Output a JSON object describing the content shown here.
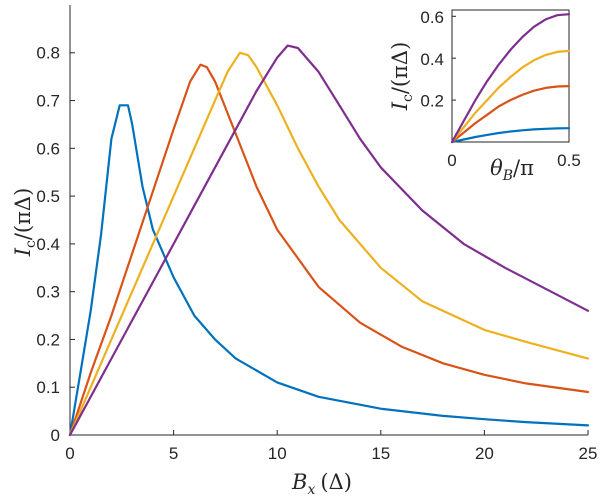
{
  "chart_data": [
    {
      "type": "line",
      "title": "",
      "xlabel": "B_x (Δ)",
      "ylabel": "I_c/(πΔ)",
      "xlim": [
        0,
        25
      ],
      "ylim": [
        0,
        0.9
      ],
      "xticks": [
        "0",
        "5",
        "10",
        "15",
        "20",
        "25"
      ],
      "yticks": [
        "0",
        "0.1",
        "0.2",
        "0.3",
        "0.4",
        "0.5",
        "0.6",
        "0.7",
        "0.8"
      ],
      "grid": false,
      "series": [
        {
          "color": "#0072BD",
          "x": [
            0,
            0.5,
            1,
            1.5,
            2,
            2.4,
            2.8,
            3.0,
            3.5,
            4,
            5,
            6,
            7,
            8,
            10,
            12,
            15,
            18,
            20,
            22,
            25
          ],
          "y": [
            0,
            0.13,
            0.26,
            0.42,
            0.62,
            0.69,
            0.69,
            0.65,
            0.52,
            0.43,
            0.33,
            0.25,
            0.2,
            0.16,
            0.11,
            0.08,
            0.055,
            0.04,
            0.033,
            0.027,
            0.02
          ]
        },
        {
          "color": "#D95319",
          "x": [
            0,
            1,
            2,
            3,
            4,
            5,
            5.8,
            6.3,
            6.6,
            7,
            8,
            9,
            10,
            12,
            14,
            16,
            18,
            20,
            22,
            25
          ],
          "y": [
            0,
            0.13,
            0.25,
            0.38,
            0.51,
            0.64,
            0.74,
            0.775,
            0.77,
            0.74,
            0.63,
            0.52,
            0.43,
            0.31,
            0.235,
            0.185,
            0.15,
            0.126,
            0.108,
            0.09
          ]
        },
        {
          "color": "#EDB120",
          "x": [
            0,
            2,
            4,
            6,
            7,
            7.6,
            8.2,
            8.6,
            9,
            10,
            11,
            12,
            13,
            15,
            17,
            20,
            22,
            25
          ],
          "y": [
            0,
            0.2,
            0.4,
            0.6,
            0.7,
            0.76,
            0.8,
            0.795,
            0.77,
            0.69,
            0.6,
            0.52,
            0.45,
            0.35,
            0.28,
            0.22,
            0.195,
            0.16
          ]
        },
        {
          "color": "#7E2F8E",
          "x": [
            0,
            2,
            4,
            6,
            8,
            9,
            10,
            10.5,
            11,
            12,
            13,
            14,
            15,
            17,
            19,
            21,
            23,
            25
          ],
          "y": [
            0,
            0.16,
            0.32,
            0.48,
            0.64,
            0.72,
            0.79,
            0.815,
            0.81,
            0.76,
            0.69,
            0.62,
            0.56,
            0.47,
            0.4,
            0.35,
            0.305,
            0.26
          ]
        }
      ]
    },
    {
      "type": "line",
      "title": "",
      "xlabel": "θ_B/π",
      "ylabel": "I_c/(πΔ)",
      "xlim": [
        0,
        0.5
      ],
      "ylim": [
        0,
        0.63
      ],
      "xticks": [
        "0",
        "0.5"
      ],
      "yticks": [
        "0.2",
        "0.4",
        "0.6"
      ],
      "grid": false,
      "series": [
        {
          "color": "#0072BD",
          "x": [
            0,
            0.05,
            0.1,
            0.15,
            0.2,
            0.25,
            0.3,
            0.35,
            0.4,
            0.45,
            0.5
          ],
          "y": [
            0,
            0.012,
            0.024,
            0.034,
            0.043,
            0.05,
            0.056,
            0.06,
            0.063,
            0.065,
            0.066
          ]
        },
        {
          "color": "#D95319",
          "x": [
            0,
            0.05,
            0.1,
            0.15,
            0.2,
            0.25,
            0.3,
            0.35,
            0.4,
            0.45,
            0.5
          ],
          "y": [
            0,
            0.045,
            0.09,
            0.13,
            0.17,
            0.2,
            0.225,
            0.245,
            0.258,
            0.265,
            0.267
          ]
        },
        {
          "color": "#EDB120",
          "x": [
            0,
            0.05,
            0.1,
            0.15,
            0.2,
            0.25,
            0.3,
            0.35,
            0.4,
            0.45,
            0.5
          ],
          "y": [
            0,
            0.07,
            0.14,
            0.2,
            0.26,
            0.31,
            0.355,
            0.39,
            0.415,
            0.43,
            0.435
          ]
        },
        {
          "color": "#7E2F8E",
          "x": [
            0,
            0.05,
            0.1,
            0.15,
            0.2,
            0.25,
            0.3,
            0.35,
            0.4,
            0.45,
            0.5
          ],
          "y": [
            0,
            0.1,
            0.2,
            0.29,
            0.37,
            0.44,
            0.5,
            0.55,
            0.585,
            0.605,
            0.61
          ]
        }
      ]
    }
  ],
  "labels": {
    "main_x_var": "B",
    "main_x_sub": "x",
    "main_x_unit": "(Δ)",
    "main_y_var": "I",
    "main_y_sub": "c",
    "main_y_rest": "/(πΔ)",
    "inset_x_var": "θ",
    "inset_x_sub": "B",
    "inset_x_rest": "/π",
    "inset_y_var": "I",
    "inset_y_sub": "c",
    "inset_y_rest": "/(πΔ)"
  }
}
